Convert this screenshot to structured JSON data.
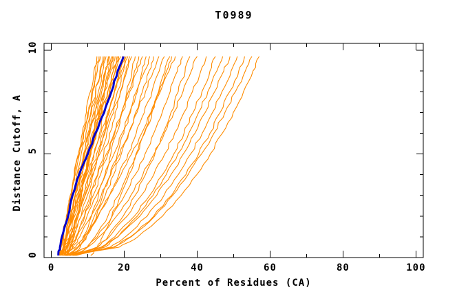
{
  "chart_data": {
    "type": "line",
    "title": "T0989",
    "xlabel": "Percent of Residues (CA)",
    "ylabel": "Distance Cutoff, A",
    "xlim": [
      -2,
      102
    ],
    "ylim": [
      0,
      10.33
    ],
    "x_major_ticks": [
      0,
      20,
      40,
      60,
      80,
      100
    ],
    "x_minor_ticks": [
      10,
      30,
      50,
      70,
      90
    ],
    "y_major_ticks": [
      0,
      5,
      10
    ],
    "y_minor_ticks": [
      1,
      2,
      3,
      4,
      6,
      7,
      8,
      9
    ],
    "grid": false,
    "legend": "none",
    "background_color": "#ffffff",
    "axis_color": "#000000",
    "models_color": "#FF8C00",
    "sample_y": [
      0.1,
      0.5,
      1,
      2,
      3,
      4,
      5,
      6,
      7,
      8,
      9,
      9.7
    ],
    "highlight": {
      "name": "highlighted-model",
      "color": "#0000CD",
      "width": 3,
      "x": [
        1.9,
        2.3,
        2.9,
        4.6,
        5.8,
        7.6,
        10.0,
        12.1,
        14.5,
        16.5,
        18.2,
        19.8
      ]
    },
    "models": [
      [
        2.0,
        2.5,
        3.1,
        4.2,
        5.2,
        6.3,
        7.4,
        8.5,
        9.6,
        10.7,
        11.7,
        12.5
      ],
      [
        2.2,
        2.6,
        3.2,
        4.1,
        5.4,
        6.4,
        7.7,
        8.8,
        10.2,
        11.3,
        12.6,
        13.5
      ],
      [
        2.5,
        3.3,
        4.0,
        5.3,
        6.5,
        7.7,
        8.8,
        10.0,
        11.1,
        12.2,
        13.3,
        14.0
      ],
      [
        3.0,
        3.3,
        3.7,
        4.7,
        5.8,
        7.0,
        8.2,
        9.5,
        10.8,
        12.1,
        13.5,
        14.5
      ],
      [
        2.8,
        3.4,
        4.1,
        5.3,
        6.6,
        7.8,
        9.1,
        10.4,
        11.6,
        12.9,
        14.1,
        15.0
      ],
      [
        3.5,
        4.6,
        5.4,
        6.9,
        8.2,
        9.4,
        10.6,
        11.7,
        12.7,
        13.8,
        14.8,
        15.5
      ],
      [
        2.2,
        2.7,
        3.3,
        4.6,
        6.0,
        7.4,
        8.9,
        10.3,
        11.8,
        13.4,
        14.9,
        16.0
      ],
      [
        4.0,
        4.9,
        5.6,
        7.0,
        8.3,
        9.6,
        10.9,
        12.1,
        13.3,
        14.5,
        15.7,
        16.5
      ],
      [
        2.5,
        3.2,
        4.0,
        5.5,
        7.0,
        8.5,
        10.0,
        11.5,
        13.0,
        14.5,
        16.0,
        17.0
      ],
      [
        3.2,
        3.6,
        4.1,
        5.3,
        6.7,
        8.1,
        9.6,
        11.2,
        12.9,
        14.6,
        16.3,
        17.5
      ],
      [
        2.0,
        3.1,
        4.1,
        5.9,
        7.6,
        9.2,
        10.8,
        12.4,
        13.9,
        15.5,
        17.0,
        18.0
      ],
      [
        4.5,
        5.2,
        5.9,
        7.4,
        8.8,
        10.3,
        11.7,
        13.2,
        14.6,
        16.1,
        17.5,
        18.5
      ],
      [
        2.8,
        3.4,
        4.1,
        5.7,
        7.3,
        8.9,
        10.6,
        12.4,
        14.1,
        15.9,
        17.7,
        19.0
      ],
      [
        3.8,
        5.3,
        6.3,
        8.2,
        9.9,
        11.5,
        13.0,
        14.5,
        15.9,
        17.3,
        18.6,
        19.5
      ],
      [
        2.3,
        3.2,
        4.2,
        6.0,
        7.9,
        9.8,
        11.7,
        13.6,
        15.4,
        17.3,
        19.2,
        20.5
      ],
      [
        3.0,
        4.2,
        5.3,
        7.3,
        9.2,
        11.1,
        12.9,
        14.7,
        16.4,
        18.1,
        19.8,
        21.0
      ],
      [
        4.2,
        5.8,
        7.0,
        9.1,
        11.0,
        12.7,
        14.4,
        16.0,
        17.5,
        19.0,
        20.5,
        21.5
      ],
      [
        2.6,
        3.9,
        5.1,
        7.3,
        9.3,
        11.3,
        13.3,
        15.2,
        17.1,
        18.9,
        20.7,
        22.0
      ],
      [
        5.0,
        7.2,
        8.7,
        11.0,
        12.9,
        14.7,
        16.3,
        17.9,
        19.3,
        20.7,
        22.1,
        23.0
      ],
      [
        3.4,
        5.3,
        6.7,
        9.2,
        11.5,
        13.5,
        15.5,
        17.4,
        19.3,
        21.1,
        22.8,
        24.0
      ],
      [
        2.9,
        4.4,
        5.8,
        8.2,
        10.6,
        12.8,
        15.1,
        17.2,
        19.4,
        21.5,
        23.6,
        25.0
      ],
      [
        4.8,
        7.4,
        9.1,
        11.8,
        14.1,
        16.2,
        18.1,
        19.9,
        21.7,
        23.3,
        24.9,
        26.0
      ],
      [
        3.1,
        5.3,
        7.0,
        9.8,
        12.4,
        14.9,
        17.2,
        19.4,
        21.5,
        23.6,
        25.6,
        27.0
      ],
      [
        5.5,
        7.9,
        9.6,
        12.4,
        14.8,
        17.1,
        19.2,
        21.2,
        23.1,
        25.0,
        26.8,
        28.0
      ],
      [
        3.6,
        6.0,
        7.8,
        10.9,
        13.7,
        16.3,
        18.8,
        21.2,
        23.5,
        25.8,
        28.0,
        29.5
      ],
      [
        4.0,
        7.4,
        9.5,
        12.9,
        15.9,
        18.5,
        21.0,
        23.3,
        25.5,
        27.6,
        29.6,
        31.0
      ],
      [
        6.0,
        9.9,
        12.0,
        15.5,
        18.4,
        20.9,
        23.2,
        25.4,
        27.4,
        29.4,
        31.2,
        32.5
      ],
      [
        3.3,
        6.6,
        8.9,
        12.7,
        16.0,
        19.1,
        22.0,
        24.8,
        27.3,
        29.9,
        32.3,
        34.0
      ],
      [
        4.5,
        9.8,
        12.6,
        16.7,
        20.1,
        23.0,
        25.7,
        28.1,
        30.4,
        32.6,
        34.6,
        36.0
      ],
      [
        6.5,
        12.7,
        15.5,
        19.7,
        23.0,
        25.8,
        28.4,
        30.7,
        32.8,
        34.8,
        36.7,
        38.0
      ],
      [
        3.9,
        10.0,
        13.1,
        17.9,
        21.8,
        25.1,
        28.2,
        31.0,
        33.6,
        36.1,
        38.4,
        40.0
      ],
      [
        5.2,
        12.5,
        15.9,
        20.8,
        24.7,
        28.1,
        31.1,
        33.8,
        36.4,
        38.7,
        41.0,
        42.5
      ],
      [
        4.4,
        13.6,
        17.4,
        22.8,
        27.0,
        30.5,
        33.6,
        36.4,
        38.9,
        41.3,
        43.5,
        45.0
      ],
      [
        6.8,
        14.7,
        18.3,
        23.6,
        27.9,
        31.5,
        34.7,
        37.7,
        40.4,
        42.9,
        45.4,
        47.0
      ],
      [
        3.7,
        14.0,
        18.2,
        24.3,
        28.9,
        32.8,
        36.2,
        39.4,
        42.2,
        44.8,
        47.3,
        49.0
      ],
      [
        5.8,
        16.1,
        20.3,
        26.3,
        30.9,
        34.8,
        38.2,
        41.4,
        44.2,
        46.8,
        49.3,
        51.0
      ],
      [
        4.1,
        17.0,
        21.7,
        28.1,
        33.0,
        36.9,
        40.4,
        43.5,
        46.3,
        48.9,
        51.4,
        53.0
      ],
      [
        6.2,
        17.3,
        21.9,
        28.4,
        33.3,
        37.5,
        41.2,
        44.6,
        47.6,
        50.5,
        53.2,
        55.0
      ],
      [
        4.9,
        18.6,
        23.7,
        30.5,
        35.6,
        39.9,
        43.6,
        46.9,
        49.9,
        52.7,
        55.3,
        57.0
      ],
      [
        10.8,
        12.6,
        14.0,
        16.6,
        19.0,
        21.3,
        23.4,
        25.6,
        27.6,
        29.6,
        31.6,
        33.0
      ],
      [
        2.1,
        2.7,
        3.2,
        4.3,
        5.5,
        6.6,
        7.7,
        8.8,
        10.0,
        11.1,
        12.2,
        13.0
      ],
      [
        3.4,
        4.2,
        5.0,
        6.4,
        7.8,
        9.2,
        10.5,
        11.9,
        13.2,
        14.6,
        15.9,
        16.8
      ],
      [
        2.7,
        3.3,
        3.9,
        5.2,
        6.5,
        7.9,
        9.2,
        10.6,
        12.0,
        13.4,
        14.8,
        15.8
      ],
      [
        3.9,
        4.4,
        4.9,
        6.2,
        7.6,
        9.1,
        10.6,
        12.1,
        13.7,
        15.4,
        17.0,
        18.2
      ],
      [
        2.4,
        3.8,
        5.0,
        7.0,
        8.9,
        10.7,
        12.4,
        14.1,
        15.7,
        17.3,
        18.9,
        20.0
      ]
    ]
  }
}
